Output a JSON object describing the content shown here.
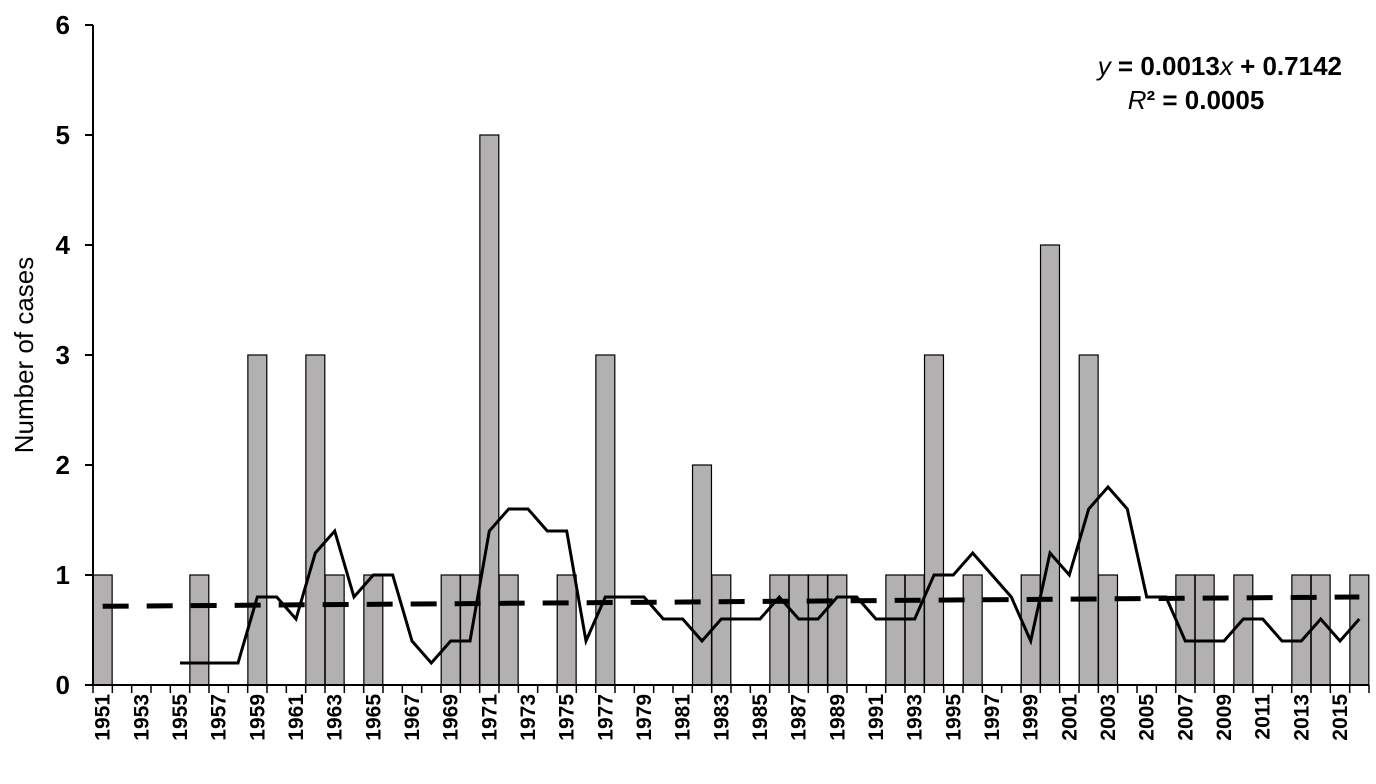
{
  "chart_data": {
    "type": "bar",
    "title": "",
    "xlabel": "",
    "ylabel": "Number of cases",
    "ylim": [
      0,
      6
    ],
    "yticks": [
      0,
      1,
      2,
      3,
      4,
      5,
      6
    ],
    "x_tick_labels": [
      "1951",
      "1953",
      "1955",
      "1957",
      "1959",
      "1961",
      "1963",
      "1965",
      "1967",
      "1969",
      "1971",
      "1973",
      "1975",
      "1977",
      "1979",
      "1981",
      "1983",
      "1985",
      "1987",
      "1989",
      "1991",
      "1993",
      "1995",
      "1997",
      "1999",
      "2001",
      "2003",
      "2005",
      "2007",
      "2009",
      "2011",
      "2013",
      "2015"
    ],
    "categories": [
      "1951",
      "1952",
      "1953",
      "1954",
      "1955",
      "1956",
      "1957",
      "1958",
      "1959",
      "1960",
      "1961",
      "1962",
      "1963",
      "1964",
      "1965",
      "1966",
      "1967",
      "1968",
      "1969",
      "1970",
      "1971",
      "1972",
      "1973",
      "1974",
      "1975",
      "1976",
      "1977",
      "1978",
      "1979",
      "1980",
      "1981",
      "1982",
      "1983",
      "1984",
      "1985",
      "1986",
      "1987",
      "1988",
      "1989",
      "1990",
      "1991",
      "1992",
      "1993",
      "1994",
      "1995",
      "1996",
      "1997",
      "1998",
      "1999",
      "2000",
      "2001",
      "2002",
      "2003",
      "2004",
      "2005",
      "2006",
      "2007",
      "2008",
      "2009",
      "2010",
      "2011",
      "2012",
      "2013",
      "2014",
      "2015",
      "2016"
    ],
    "values": [
      1,
      0,
      0,
      0,
      0,
      1,
      0,
      0,
      3,
      0,
      0,
      3,
      1,
      0,
      1,
      0,
      0,
      0,
      1,
      1,
      5,
      1,
      0,
      0,
      1,
      0,
      3,
      0,
      0,
      0,
      0,
      2,
      1,
      0,
      0,
      1,
      1,
      1,
      1,
      0,
      0,
      1,
      1,
      3,
      0,
      1,
      0,
      0,
      1,
      4,
      0,
      3,
      1,
      0,
      0,
      0,
      1,
      1,
      0,
      1,
      0,
      0,
      1,
      1,
      0,
      1
    ],
    "moving_average": [
      [
        1955,
        0.2
      ],
      [
        1956,
        0.2
      ],
      [
        1957,
        0.2
      ],
      [
        1958,
        0.2
      ],
      [
        1959,
        0.8
      ],
      [
        1960,
        0.8
      ],
      [
        1961,
        0.6
      ],
      [
        1962,
        1.2
      ],
      [
        1963,
        1.4
      ],
      [
        1964,
        0.8
      ],
      [
        1965,
        1.0
      ],
      [
        1966,
        1.0
      ],
      [
        1967,
        0.4
      ],
      [
        1968,
        0.2
      ],
      [
        1969,
        0.4
      ],
      [
        1970,
        0.4
      ],
      [
        1971,
        1.4
      ],
      [
        1972,
        1.6
      ],
      [
        1973,
        1.6
      ],
      [
        1974,
        1.4
      ],
      [
        1975,
        1.4
      ],
      [
        1976,
        0.4
      ],
      [
        1977,
        0.8
      ],
      [
        1978,
        0.8
      ],
      [
        1979,
        0.8
      ],
      [
        1980,
        0.6
      ],
      [
        1981,
        0.6
      ],
      [
        1982,
        0.4
      ],
      [
        1983,
        0.6
      ],
      [
        1984,
        0.6
      ],
      [
        1985,
        0.6
      ],
      [
        1986,
        0.8
      ],
      [
        1987,
        0.6
      ],
      [
        1988,
        0.6
      ],
      [
        1989,
        0.8
      ],
      [
        1990,
        0.8
      ],
      [
        1991,
        0.6
      ],
      [
        1992,
        0.6
      ],
      [
        1993,
        0.6
      ],
      [
        1994,
        1.0
      ],
      [
        1995,
        1.0
      ],
      [
        1996,
        1.2
      ],
      [
        1997,
        1.0
      ],
      [
        1998,
        0.8
      ],
      [
        1999,
        0.4
      ],
      [
        2000,
        1.2
      ],
      [
        2001,
        1.0
      ],
      [
        2002,
        1.6
      ],
      [
        2003,
        1.8
      ],
      [
        2004,
        1.6
      ],
      [
        2005,
        0.8
      ],
      [
        2006,
        0.8
      ],
      [
        2007,
        0.4
      ],
      [
        2008,
        0.4
      ],
      [
        2009,
        0.4
      ],
      [
        2010,
        0.6
      ],
      [
        2011,
        0.6
      ],
      [
        2012,
        0.4
      ],
      [
        2013,
        0.4
      ],
      [
        2014,
        0.6
      ],
      [
        2015,
        0.4
      ],
      [
        2016,
        0.6
      ]
    ],
    "trendline": {
      "slope": 0.0013,
      "intercept": 0.7142,
      "x_start_index": 1,
      "x_end_index": 66
    },
    "equation": {
      "y_var": "y",
      "x_var": "x",
      "rhs_a": " = 0.0013",
      "rhs_b": " + 0.7142",
      "r_var": "R",
      "r_rest": "² = 0.0005"
    },
    "grid": false,
    "legend": "none",
    "colors": {
      "bar_fill": "#b2b0b0",
      "bar_stroke": "#000000",
      "line": "#000000",
      "trend": "#000000"
    }
  }
}
